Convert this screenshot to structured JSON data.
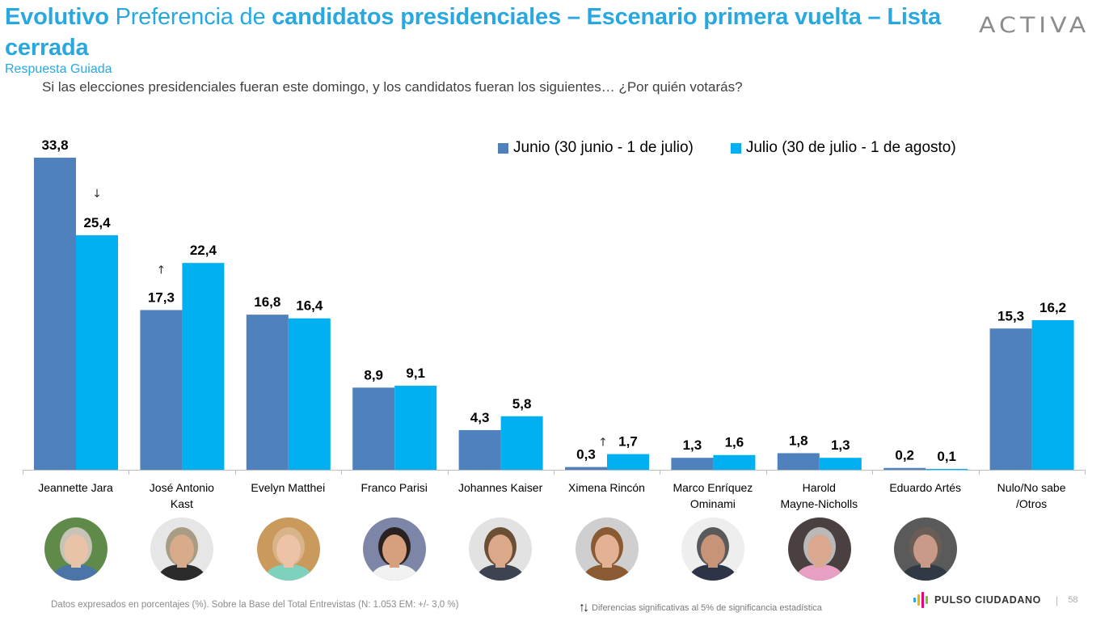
{
  "header": {
    "title_part1": "Evolutivo",
    "title_part2": " Preferencia de ",
    "title_part3": "candidatos presidenciales – Escenario primera vuelta – Lista cerrada",
    "subtitle": "Respuesta Guiada",
    "question": "Si las elecciones presidenciales fueran este domingo, y los candidatos fueran los siguientes… ¿Por quién votarás?",
    "logo": "ACTIVA"
  },
  "colors": {
    "title": "#29a8e0",
    "series_junio": "#4f81bd",
    "series_julio": "#00b0f0"
  },
  "chart_data": {
    "type": "bar",
    "title": "Evolutivo Preferencia de candidatos presidenciales – Escenario primera vuelta – Lista cerrada",
    "xlabel": "",
    "ylabel": "",
    "ylim": [
      0,
      35
    ],
    "grid": false,
    "legend_position": "top-right",
    "categories": [
      "Jeannette Jara",
      "José Antonio Kast",
      "Evelyn Matthei",
      "Franco Parisi",
      "Johannes Kaiser",
      "Ximena Rincón",
      "Marco Enríquez Ominami",
      "Harold Mayne-Nicholls",
      "Eduardo Artés",
      "Nulo/No sabe /Otros"
    ],
    "category_lines": [
      [
        "Jeannette Jara"
      ],
      [
        "José Antonio",
        "Kast"
      ],
      [
        "Evelyn Matthei"
      ],
      [
        "Franco Parisi"
      ],
      [
        "Johannes Kaiser"
      ],
      [
        "Ximena Rincón"
      ],
      [
        "Marco Enríquez",
        "Ominami"
      ],
      [
        "Harold",
        "Mayne-Nicholls"
      ],
      [
        "Eduardo Artés"
      ],
      [
        "Nulo/No sabe",
        "/Otros"
      ]
    ],
    "series": [
      {
        "name": "Junio (30 junio - 1 de julio)",
        "color": "#4f81bd",
        "values": [
          33.8,
          17.3,
          16.8,
          8.9,
          4.3,
          0.3,
          1.3,
          1.8,
          0.2,
          15.3
        ],
        "labels": [
          "33,8",
          "17,3",
          "16,8",
          "8,9",
          "4,3",
          "0,3",
          "1,3",
          "1,8",
          "0,2",
          "15,3"
        ]
      },
      {
        "name": "Julio (30 de julio - 1 de agosto)",
        "color": "#00b0f0",
        "values": [
          25.4,
          22.4,
          16.4,
          9.1,
          5.8,
          1.7,
          1.6,
          1.3,
          0.1,
          16.2
        ],
        "labels": [
          "25,4",
          "22,4",
          "16,4",
          "9,1",
          "5,8",
          "1,7",
          "1,6",
          "1,3",
          "0,1",
          "16,2"
        ]
      }
    ],
    "annotations": [
      {
        "category": "Jeannette Jara",
        "symbol": "↓",
        "meaning": "significant decrease"
      },
      {
        "category": "José Antonio Kast",
        "symbol": "↑",
        "meaning": "significant increase"
      },
      {
        "category": "Ximena Rincón",
        "symbol": "↑",
        "meaning": "significant increase"
      }
    ]
  },
  "avatars": [
    {
      "name": "Jeannette Jara",
      "icon": "portrait-icon",
      "bg": "#5f8a4a",
      "hair": "#c9c2b6",
      "skin": "#e8c3a8",
      "cloth": "#4b74a8"
    },
    {
      "name": "José Antonio Kast",
      "icon": "portrait-icon",
      "bg": "#e6e6e6",
      "hair": "#a99c85",
      "skin": "#d8ab8a",
      "cloth": "#2b2b2b"
    },
    {
      "name": "Evelyn Matthei",
      "icon": "portrait-icon",
      "bg": "#c99a5b",
      "hair": "#d8b48a",
      "skin": "#edc2a6",
      "cloth": "#7ed1bd"
    },
    {
      "name": "Franco Parisi",
      "icon": "portrait-icon",
      "bg": "#7d86a6",
      "hair": "#2a2220",
      "skin": "#d6a07e",
      "cloth": "#f2f2f2"
    },
    {
      "name": "Johannes Kaiser",
      "icon": "portrait-icon",
      "bg": "#e2e2e2",
      "hair": "#6b4f35",
      "skin": "#dca88a",
      "cloth": "#3d4350"
    },
    {
      "name": "Ximena Rincón",
      "icon": "portrait-icon",
      "bg": "#cfcfcf",
      "hair": "#8a5a32",
      "skin": "#e3b294",
      "cloth": "#8a5a32"
    },
    {
      "name": "Marco Enríquez Ominami",
      "icon": "portrait-icon",
      "bg": "#eeeeee",
      "hair": "#5a5a5a",
      "skin": "#c89478",
      "cloth": "#2e3447"
    },
    {
      "name": "Harold Mayne-Nicholls",
      "icon": "portrait-icon",
      "bg": "#4a4040",
      "hair": "#b9b9b9",
      "skin": "#d9a88f",
      "cloth": "#e7a0c4"
    },
    {
      "name": "Eduardo Artés",
      "icon": "portrait-icon",
      "bg": "#5a5a5a",
      "hair": "#6a5d55",
      "skin": "#c99a88",
      "cloth": "#2f3a45"
    }
  ],
  "footer": {
    "note": "Datos expresados en porcentajes (%). Sobre la Base del Total Entrevistas (N: 1.053  EM: +/- 3,0 %)",
    "significance_symbol": "↑↓",
    "significance_text": "Diferencias  significativas  al 5% de significancia estadística",
    "brand": "PULSO CIUDADANO",
    "page_number": "58"
  }
}
